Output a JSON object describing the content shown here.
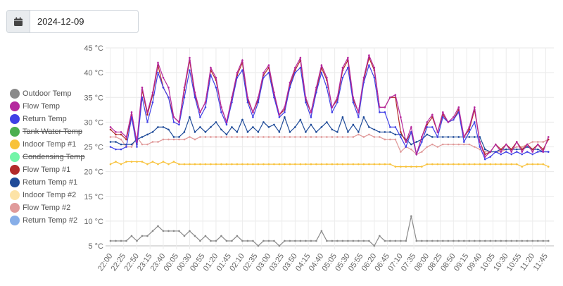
{
  "date_picker": {
    "value": "2024-12-09",
    "icon": "calendar-icon"
  },
  "chart_data": {
    "type": "line",
    "x_start": "22:00",
    "x_step_minutes": 10,
    "x_range_minutes": [
      0,
      835
    ],
    "y_unit": "°C",
    "ylim": [
      5,
      45
    ],
    "y_ticks": [
      "5 °C",
      "10 °C",
      "15 °C",
      "20 °C",
      "25 °C",
      "30 °C",
      "35 °C",
      "40 °C",
      "45 °C"
    ],
    "y_tick_values": [
      5,
      10,
      15,
      20,
      25,
      30,
      35,
      40,
      45
    ],
    "x_tick_step_minutes": 25,
    "x_ticks": [
      "22:00",
      "22:25",
      "22:50",
      "23:15",
      "23:40",
      "00:05",
      "00:30",
      "00:55",
      "01:20",
      "01:45",
      "02:10",
      "02:35",
      "03:00",
      "03:25",
      "03:50",
      "04:15",
      "04:40",
      "05:05",
      "05:30",
      "05:55",
      "06:20",
      "06:45",
      "07:10",
      "07:35",
      "08:00",
      "08:25",
      "08:50",
      "09:15",
      "09:40",
      "10:05",
      "10:30",
      "10:55",
      "11:20",
      "11:45"
    ],
    "grid": true,
    "legend_position": "left",
    "series": [
      {
        "name": "Outdoor Temp",
        "color": "#8a8a8a",
        "visible": true,
        "values": [
          6,
          6,
          6,
          6,
          7,
          6,
          7,
          7,
          8,
          9,
          8,
          8,
          8,
          8,
          7,
          8,
          7,
          6,
          7,
          6,
          6,
          7,
          6,
          6,
          7,
          6,
          6,
          6,
          5,
          6,
          6,
          6,
          5,
          6,
          6,
          6,
          6,
          6,
          6,
          6,
          8,
          6,
          6,
          6,
          6,
          6,
          6,
          6,
          6,
          6,
          5,
          7,
          6,
          6,
          6,
          6,
          6,
          11,
          6,
          6,
          6,
          6,
          6,
          6,
          6,
          6,
          6,
          6,
          6,
          6,
          6,
          6,
          6,
          6,
          6,
          6,
          6,
          6,
          6,
          6,
          6,
          6,
          6,
          6
        ]
      },
      {
        "name": "Flow Temp",
        "color": "#b5289e",
        "visible": true,
        "values": [
          29,
          28,
          28,
          27,
          32,
          26,
          37,
          32,
          36,
          42,
          39,
          37,
          31,
          30,
          37,
          43,
          36,
          32,
          34,
          41,
          39,
          33,
          30,
          35,
          40,
          42.5,
          35,
          32,
          35,
          40,
          41.5,
          36,
          31.5,
          33,
          38,
          41,
          43,
          35,
          32,
          37,
          41.5,
          39,
          33,
          35,
          41,
          43,
          35,
          32,
          39,
          43.5,
          41,
          33,
          33,
          35,
          35.5,
          31,
          26,
          29,
          23.5,
          27,
          30,
          31.5,
          28,
          32,
          30,
          31,
          33,
          27,
          29,
          33,
          26,
          23,
          24,
          25.5,
          24,
          25.5,
          24,
          26,
          24,
          25.5,
          24,
          25.5,
          24,
          27
        ]
      },
      {
        "name": "Return Temp",
        "color": "#4040e6",
        "visible": true,
        "values": [
          25,
          24.5,
          24.5,
          25,
          31,
          25,
          35,
          30,
          34,
          40,
          37,
          35,
          30,
          29.5,
          35,
          40.5,
          35,
          31,
          33,
          39.5,
          37,
          32,
          29.5,
          34,
          39,
          40.5,
          34,
          31,
          34,
          39,
          40,
          35,
          31,
          32,
          37,
          40,
          41,
          34,
          31,
          36,
          40,
          37,
          32,
          34,
          39,
          41,
          34,
          31,
          38,
          41.5,
          39,
          32,
          32,
          29,
          29,
          27,
          25,
          28,
          23.5,
          26,
          29,
          29,
          27,
          31,
          30,
          30.5,
          32,
          26,
          28,
          30,
          25,
          22.5,
          23,
          24,
          23.5,
          24,
          23.5,
          24,
          23.5,
          24,
          23.5,
          24,
          24,
          24
        ]
      },
      {
        "name": "Tank Water Temp",
        "color": "#4caf50",
        "visible": false,
        "values": []
      },
      {
        "name": "Indoor Temp #1",
        "color": "#f8c23a",
        "visible": true,
        "values": [
          21.5,
          22,
          21.5,
          22,
          22,
          22,
          22,
          21.5,
          22,
          21.5,
          22,
          21.5,
          22,
          21.5,
          21.5,
          21.5,
          21.5,
          21.5,
          21.5,
          21.5,
          21.5,
          21.5,
          21.5,
          21.5,
          21.5,
          21.5,
          21.5,
          21.5,
          21.5,
          21.5,
          21.5,
          21.5,
          21.5,
          21.5,
          21.5,
          21.5,
          21.5,
          21.5,
          21.5,
          21.5,
          21.5,
          21.5,
          21.5,
          21.5,
          21.5,
          21.5,
          21.5,
          21.5,
          21.5,
          21.5,
          21.5,
          21.5,
          21.5,
          21.5,
          21,
          21,
          21,
          21,
          21,
          21,
          21.5,
          21.5,
          21.5,
          21.5,
          21.5,
          21.5,
          21.5,
          21.5,
          21.5,
          21.5,
          21.5,
          21.5,
          21.5,
          21.5,
          21.5,
          21.5,
          21.5,
          21.5,
          21,
          21.5,
          21.5,
          21.5,
          21.5,
          21
        ]
      },
      {
        "name": "Condensing Temp",
        "color": "#73f5a8",
        "visible": false,
        "values": []
      },
      {
        "name": "Flow Temp #1",
        "color": "#b22b2b",
        "visible": true,
        "values": [
          28.5,
          27.5,
          27.5,
          26.5,
          31.5,
          25.5,
          36.5,
          31.5,
          35.5,
          41.5,
          37,
          35,
          31,
          30,
          36.5,
          42.5,
          35.5,
          32,
          34,
          40.5,
          38.5,
          33,
          30,
          34.5,
          39.5,
          42,
          34.5,
          32,
          34.5,
          39.5,
          41,
          35.5,
          31.5,
          32.5,
          37.5,
          40.5,
          42.5,
          34.5,
          32,
          36.5,
          41,
          38.5,
          33,
          34.5,
          40.5,
          42.5,
          34.5,
          32,
          38.5,
          43,
          40.5,
          33,
          33,
          35,
          35,
          28,
          26,
          28,
          23.5,
          27,
          29.5,
          31,
          28,
          31.5,
          30,
          30.5,
          32.5,
          27,
          28.5,
          32.5,
          26,
          23.5,
          24,
          25.5,
          24.5,
          25.5,
          24.5,
          26,
          24.5,
          25.5,
          24.5,
          25.5,
          24.5,
          26.5
        ]
      },
      {
        "name": "Return Temp #1",
        "color": "#1f4b99",
        "visible": true,
        "values": [
          26,
          26,
          25.5,
          25.5,
          25.5,
          26.5,
          27,
          27.5,
          28,
          29,
          29,
          28.5,
          27,
          27,
          28,
          31,
          28,
          29,
          28,
          29,
          30,
          28.5,
          27.5,
          29,
          28,
          30.5,
          28,
          29,
          28,
          30,
          29,
          29.5,
          28,
          31,
          28,
          29,
          30.5,
          28,
          29.5,
          28,
          29,
          30,
          28.5,
          28,
          31,
          28,
          29.5,
          28,
          31,
          29,
          28.5,
          28,
          28,
          28,
          27.5,
          27.5,
          26.5,
          25.5,
          26,
          26.5,
          27.5,
          27,
          27,
          27,
          27,
          27,
          27,
          27,
          27,
          27,
          27,
          24.5,
          24,
          24,
          24.5,
          24.5,
          24.5,
          24.5,
          24.5,
          25,
          24.5,
          24.5,
          24,
          24
        ]
      },
      {
        "name": "Indoor Temp #2",
        "color": "#fde3a7",
        "visible": true,
        "values": []
      },
      {
        "name": "Flow Temp #2",
        "color": "#e09a9a",
        "visible": true,
        "values": [
          27,
          27,
          26.5,
          25,
          25,
          27,
          25.5,
          25.5,
          26,
          26,
          26.5,
          26.5,
          26.5,
          26.5,
          26.5,
          27,
          26.5,
          27,
          27,
          27,
          27,
          27,
          27,
          27,
          27,
          27,
          27,
          27,
          27,
          27,
          27,
          27,
          27,
          27,
          27,
          27,
          27,
          27,
          27,
          27,
          27,
          27,
          27,
          27,
          27,
          27,
          27,
          27.5,
          27,
          27.5,
          27,
          27,
          26.5,
          26.5,
          26.5,
          24,
          25,
          24.5,
          23.5,
          24,
          25,
          25.5,
          25,
          25.5,
          25.5,
          25.5,
          25.5,
          25.5,
          25.5,
          25,
          24.5,
          24,
          24,
          24,
          24,
          24.5,
          24.5,
          25,
          25,
          25.5,
          26,
          26,
          26,
          26.5
        ]
      },
      {
        "name": "Return Temp #2",
        "color": "#87aee8",
        "visible": true,
        "values": [
          24.5,
          24.5,
          24.5,
          25,
          27,
          28,
          29,
          29.5,
          30.5,
          32,
          31,
          30.5,
          29,
          28.5,
          30,
          32,
          31,
          29.5,
          29,
          31,
          31,
          30,
          28.5,
          30,
          31.5,
          32,
          31,
          30,
          30.5,
          32,
          31.5,
          31,
          30,
          29.5,
          31,
          32,
          31.5,
          30.5,
          29.5,
          31,
          32,
          31.5,
          30,
          30,
          31.5,
          32,
          30.5,
          29,
          31,
          34,
          32,
          29,
          29,
          29,
          28.5,
          23,
          23.5,
          23.5,
          23,
          23.5,
          24,
          24,
          23.5,
          24,
          23.5,
          23.5,
          24,
          23.5,
          23.5,
          23,
          23,
          23,
          23,
          23.5,
          24,
          24,
          24,
          24,
          24,
          24,
          24,
          24,
          24,
          24
        ]
      }
    ]
  }
}
